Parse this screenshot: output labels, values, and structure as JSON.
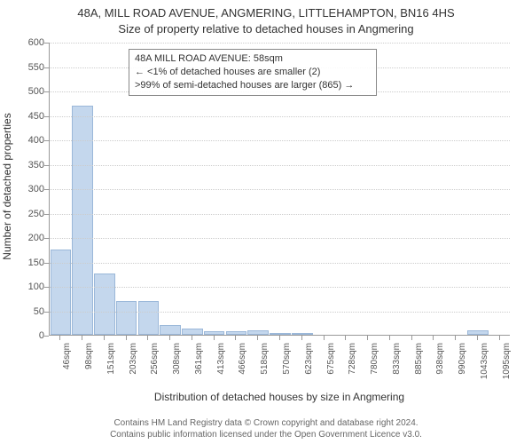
{
  "title": {
    "line1": "48A, MILL ROAD AVENUE, ANGMERING, LITTLEHAMPTON, BN16 4HS",
    "line2": "Size of property relative to detached houses in Angmering"
  },
  "chart": {
    "type": "histogram",
    "y_axis_title": "Number of detached properties",
    "x_axis_title": "Distribution of detached houses by size in Angmering",
    "ylim": [
      0,
      600
    ],
    "ytick_step": 50,
    "yticks": [
      0,
      50,
      100,
      150,
      200,
      250,
      300,
      350,
      400,
      450,
      500,
      550,
      600
    ],
    "x_categories": [
      "46sqm",
      "98sqm",
      "151sqm",
      "203sqm",
      "256sqm",
      "308sqm",
      "361sqm",
      "413sqm",
      "466sqm",
      "518sqm",
      "570sqm",
      "623sqm",
      "675sqm",
      "728sqm",
      "780sqm",
      "833sqm",
      "885sqm",
      "938sqm",
      "990sqm",
      "1043sqm",
      "1095sqm"
    ],
    "values": [
      175,
      470,
      125,
      70,
      70,
      20,
      12,
      8,
      8,
      10,
      2,
      2,
      0,
      0,
      0,
      0,
      0,
      0,
      0,
      10,
      0
    ],
    "bar_fill": "#c4d7ed",
    "bar_stroke": "#9bb8d9",
    "grid_color": "#cccccc",
    "axis_color": "#999999",
    "background_color": "#ffffff",
    "text_color": "#333333",
    "label_fontsize": 11,
    "title_fontsize": 13
  },
  "info_box": {
    "line1": "48A MILL ROAD AVENUE: 58sqm",
    "line2": "← <1% of detached houses are smaller (2)",
    "line3": ">99% of semi-detached houses are larger (865) →"
  },
  "footer": {
    "line1": "Contains HM Land Registry data © Crown copyright and database right 2024.",
    "line2": "Contains public information licensed under the Open Government Licence v3.0."
  }
}
